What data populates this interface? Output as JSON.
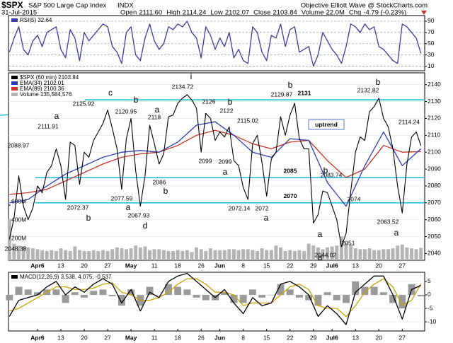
{
  "header": {
    "symbol": "$SPX",
    "name": "S&P 500 Large Cap Index",
    "exchange": "INDX",
    "credit": "Objective Elliott Wave @ StockCharts.com",
    "date": "31-Jul-2015",
    "quote": [
      {
        "label": "Open",
        "value": "2111.60"
      },
      {
        "label": "High",
        "value": "2114.24"
      },
      {
        "label": "Low",
        "value": "2102.07"
      },
      {
        "label": "Close",
        "value": "2103.84"
      },
      {
        "label": "Volume",
        "value": "22.0M"
      },
      {
        "label": "Chg",
        "value": "-4.79 (-0.23%)"
      }
    ]
  },
  "chart_data": [
    {
      "type": "line",
      "legend": [
        "RSI(5) 32.64"
      ],
      "xlim": [
        -0.2,
        88.8
      ],
      "ylim": [
        2,
        100
      ],
      "yticks": [
        10,
        30,
        50,
        70,
        90
      ],
      "grid": true,
      "series": [
        {
          "name": "RSI(5)",
          "color": "#3f3a9e",
          "values": [
            35,
            60,
            80,
            40,
            30,
            55,
            65,
            45,
            70,
            75,
            80,
            40,
            25,
            75,
            60,
            20,
            70,
            55,
            65,
            75,
            85,
            80,
            45,
            35,
            15,
            70,
            80,
            30,
            20,
            60,
            85,
            55,
            40,
            50,
            80,
            75,
            85,
            80,
            90,
            70,
            60,
            25,
            80,
            65,
            40,
            60,
            45,
            70,
            25,
            40,
            20,
            15,
            80,
            70,
            35,
            20,
            65,
            60,
            85,
            45,
            75,
            80,
            35,
            40,
            45,
            10,
            30,
            70,
            55,
            40,
            30,
            15,
            45,
            85,
            80,
            70,
            85,
            75,
            80,
            45,
            40,
            30,
            20,
            15,
            85,
            80,
            70,
            60,
            32.64
          ]
        }
      ]
    },
    {
      "type": "line",
      "legend": [
        "$SPX (60 min) 2103.84",
        "EMA(34) 2102.01",
        "EMA(89) 2100.36",
        "Volume 135,584,576"
      ],
      "xlim": [
        -0.2,
        88.8
      ],
      "ylim": [
        2036,
        2147
      ],
      "yticks": [
        2040,
        2050,
        2060,
        2070,
        2080,
        2090,
        2100,
        2110,
        2120,
        2130,
        2140
      ],
      "grid": true,
      "y2lim": [
        0,
        2040
      ],
      "y2ticks": [
        {
          "value": 200,
          "label": "200M"
        },
        {
          "value": 400,
          "label": "400M"
        },
        {
          "value": 600,
          "label": "600M"
        }
      ],
      "xticks": [
        {
          "value": 6,
          "label": "Apr6"
        },
        {
          "value": 11,
          "label": "13"
        },
        {
          "value": 16,
          "label": "20"
        },
        {
          "value": 21,
          "label": "27"
        },
        {
          "value": 26,
          "label": "May"
        },
        {
          "value": 31,
          "label": "11"
        },
        {
          "value": 36,
          "label": "18"
        },
        {
          "value": 41,
          "label": "26"
        },
        {
          "value": 45,
          "label": "Jun"
        },
        {
          "value": 50,
          "label": "8"
        },
        {
          "value": 55,
          "label": "15"
        },
        {
          "value": 60,
          "label": "22"
        },
        {
          "value": 65,
          "label": "29"
        },
        {
          "value": 69,
          "label": "Jul6"
        },
        {
          "value": 74,
          "label": "13"
        },
        {
          "value": 79,
          "label": "20"
        },
        {
          "value": 84,
          "label": "27"
        }
      ],
      "series": [
        {
          "name": "Volume",
          "type": "bar",
          "axis": "y2",
          "color": "#b4b4b4",
          "values": [
            450,
            180,
            160,
            150,
            140,
            130,
            120,
            110,
            100,
            110,
            100,
            130,
            110,
            100,
            150,
            110,
            100,
            100,
            110,
            100,
            110,
            100,
            120,
            140,
            130,
            120,
            130,
            160,
            140,
            150,
            110,
            120,
            120,
            110,
            100,
            100,
            110,
            100,
            110,
            90,
            140,
            120,
            100,
            130,
            110,
            110,
            110,
            120,
            120,
            110,
            120,
            120,
            110,
            100,
            130,
            110,
            110,
            160,
            140,
            100,
            110,
            100,
            110,
            100,
            180,
            160,
            140,
            120,
            140,
            150,
            160,
            260,
            190,
            170,
            130,
            120,
            120,
            130,
            110,
            110,
            120,
            120,
            130,
            160,
            170,
            140,
            130,
            120,
            135.584576
          ]
        },
        {
          "name": "EMA(89)",
          "color": "#c8322a",
          "x": [
            0,
            4,
            8,
            12,
            16,
            20,
            24,
            28,
            32,
            36,
            40,
            44,
            48,
            52,
            56,
            60,
            64,
            68,
            72,
            76,
            80,
            84,
            88
          ],
          "values": [
            2075,
            2076,
            2078,
            2083,
            2088,
            2093,
            2097,
            2099,
            2100,
            2104,
            2110,
            2113,
            2110,
            2105,
            2102,
            2106,
            2107,
            2095,
            2085,
            2090,
            2104,
            2100,
            2100.36
          ]
        },
        {
          "name": "EMA(34)",
          "color": "#2a3fb5",
          "x": [
            0,
            4,
            8,
            12,
            16,
            20,
            24,
            28,
            32,
            36,
            40,
            44,
            48,
            52,
            56,
            60,
            64,
            68,
            72,
            76,
            80,
            84,
            88
          ],
          "values": [
            2070,
            2072,
            2080,
            2087,
            2092,
            2097,
            2100,
            2101,
            2100,
            2106,
            2116,
            2118,
            2110,
            2100,
            2097,
            2108,
            2107,
            2082,
            2068,
            2092,
            2112,
            2092,
            2102.01
          ]
        },
        {
          "name": "$SPX (60 min)",
          "color": "#000000",
          "values": [
            2048.38,
            2061,
            2086,
            2068,
            2060,
            2067,
            2080,
            2076,
            2088,
            2092,
            2102,
            2092,
            2072,
            2106,
            2104,
            2081,
            2100,
            2097,
            2107,
            2112,
            2117,
            2125,
            2114,
            2102,
            2078,
            2108,
            2120,
            2089,
            2068,
            2086,
            2116,
            2105,
            2093,
            2099,
            2121,
            2122,
            2129,
            2132,
            2134,
            2131,
            2126,
            2100,
            2123,
            2120,
            2107,
            2112,
            2109,
            2115,
            2095,
            2092,
            2079,
            2072,
            2105,
            2110,
            2094,
            2074,
            2096,
            2100,
            2121,
            2110,
            2122,
            2129,
            2108,
            2102,
            2102,
            2058,
            2063,
            2077,
            2076,
            2068,
            2060,
            2044,
            2052,
            2077,
            2100,
            2109,
            2107,
            2124,
            2127,
            2132,
            2120,
            2115,
            2102,
            2080,
            2064,
            2093,
            2109,
            2112,
            2103.84
          ]
        }
      ],
      "levels": [
        2131,
        2085,
        2070
      ],
      "level_color": "#26c4dc",
      "status": "uptrend",
      "annotations": [
        {
          "text": "2048.38",
          "color": "#000"
        },
        {
          "text": "2088.97",
          "color": "#000"
        },
        {
          "text": "a",
          "color": "#2a9d3a"
        },
        {
          "text": "2111.91",
          "color": "#000"
        },
        {
          "text": "2072.37",
          "color": "#000"
        },
        {
          "text": "b",
          "color": "#1a8a70"
        },
        {
          "text": "2125.92",
          "color": "#000"
        },
        {
          "text": "c",
          "color": "#2a4fc0"
        },
        {
          "text": "b",
          "color": "#1a8a70"
        },
        {
          "text": "2120.95",
          "color": "#000"
        },
        {
          "text": "2077.59",
          "color": "#000"
        },
        {
          "text": "a",
          "color": "#1a8a70"
        },
        {
          "text": "2067.93",
          "color": "#000"
        },
        {
          "text": "d",
          "color": "#1a2a80"
        },
        {
          "text": "a",
          "color": "#1a8a70"
        },
        {
          "text": "2118",
          "color": "#000"
        },
        {
          "text": "2086",
          "color": "#000"
        },
        {
          "text": "b",
          "color": "#1a8a70"
        },
        {
          "text": "i",
          "color": "#888888"
        },
        {
          "text": "2134.72",
          "color": "#000"
        },
        {
          "text": "2126",
          "color": "#000"
        },
        {
          "text": "b",
          "color": "#e0701c"
        },
        {
          "text": "2122",
          "color": "#000"
        },
        {
          "text": "2099",
          "color": "#000"
        },
        {
          "text": "2099",
          "color": "#000"
        },
        {
          "text": "a",
          "color": "#e0701c"
        },
        {
          "text": "2115.02",
          "color": "#000"
        },
        {
          "text": "2072.14",
          "color": "#000"
        },
        {
          "text": "2072",
          "color": "#000"
        },
        {
          "text": "a",
          "color": "#1a8a70"
        },
        {
          "text": "b",
          "color": "#1a8a70"
        },
        {
          "text": "2129.87",
          "color": "#000"
        },
        {
          "text": "b",
          "color": "#e0701c"
        },
        {
          "text": "2083.74",
          "color": "#000"
        },
        {
          "text": "2074",
          "color": "#000"
        },
        {
          "text": "a",
          "color": "#e0701c"
        },
        {
          "text": "2051",
          "color": "#000"
        },
        {
          "text": "2044.02",
          "color": "#000"
        },
        {
          "text": "a",
          "color": "#1a2a80"
        },
        {
          "text": "b",
          "color": "#2a9d3a"
        },
        {
          "text": "2132.82",
          "color": "#000"
        },
        {
          "text": "2114.24",
          "color": "#000"
        },
        {
          "text": "2063.52",
          "color": "#000"
        },
        {
          "text": "a",
          "color": "#1a8a70"
        }
      ]
    },
    {
      "type": "line",
      "legend": [
        "MACD(12,26,9) 3.538, 4.075, -0.537"
      ],
      "xlim": [
        -0.2,
        88.8
      ],
      "ylim": [
        -13.4,
        8.4
      ],
      "yticks": [
        -10,
        -5,
        0,
        5
      ],
      "grid": true,
      "xticks": [
        {
          "value": 6,
          "label": "Apr6"
        },
        {
          "value": 11,
          "label": "13"
        },
        {
          "value": 16,
          "label": "20"
        },
        {
          "value": 21,
          "label": "27"
        },
        {
          "value": 26,
          "label": "May"
        },
        {
          "value": 31,
          "label": "11"
        },
        {
          "value": 36,
          "label": "18"
        },
        {
          "value": 41,
          "label": "26"
        },
        {
          "value": 45,
          "label": "Jun"
        },
        {
          "value": 50,
          "label": "8"
        },
        {
          "value": 55,
          "label": "15"
        },
        {
          "value": 60,
          "label": "22"
        },
        {
          "value": 65,
          "label": "29"
        },
        {
          "value": 69,
          "label": "Jul6"
        },
        {
          "value": 74,
          "label": "13"
        },
        {
          "value": 79,
          "label": "20"
        },
        {
          "value": 84,
          "label": "27"
        }
      ],
      "series": [
        {
          "name": "Histogram",
          "type": "bar",
          "color": "#9a9a9a",
          "x": [
            0,
            2,
            4,
            6,
            8,
            10,
            12,
            14,
            16,
            18,
            20,
            22,
            24,
            26,
            28,
            30,
            32,
            34,
            36,
            38,
            40,
            42,
            44,
            46,
            48,
            50,
            52,
            54,
            56,
            58,
            60,
            62,
            64,
            66,
            68,
            70,
            72,
            74,
            76,
            78,
            80,
            82,
            84,
            86,
            88
          ],
          "values": [
            -2,
            3,
            2,
            1,
            2,
            2,
            -3,
            1,
            -1,
            1.5,
            2,
            -0.5,
            -4,
            2,
            -4,
            3,
            0,
            4,
            3,
            2,
            -1,
            -2,
            -2,
            1,
            -3,
            -3,
            2,
            -1,
            0,
            4,
            2,
            -1,
            -2,
            -4,
            1,
            -2,
            -3,
            5,
            3,
            3,
            1,
            -3,
            -5,
            4,
            -0.537
          ]
        },
        {
          "name": "Signal",
          "color": "#c9a400",
          "x": [
            0,
            2,
            4,
            6,
            8,
            10,
            12,
            14,
            16,
            18,
            20,
            22,
            24,
            26,
            28,
            30,
            32,
            34,
            36,
            38,
            40,
            42,
            44,
            46,
            48,
            50,
            52,
            54,
            56,
            58,
            60,
            62,
            64,
            66,
            68,
            70,
            72,
            74,
            76,
            78,
            80,
            82,
            84,
            86,
            88
          ],
          "values": [
            -6,
            -5,
            -3,
            -1,
            1,
            3,
            3,
            2,
            2,
            2.5,
            4,
            4.5,
            1,
            0,
            -2,
            -2,
            -1,
            1,
            4,
            6,
            6,
            4,
            1,
            1,
            0,
            -4,
            -3,
            -3,
            -3,
            0,
            3,
            4,
            2,
            -4,
            -5,
            -5,
            -8,
            -4,
            1,
            4,
            6,
            3,
            -4,
            -2,
            4.075
          ]
        },
        {
          "name": "MACD",
          "color": "#000000",
          "x": [
            0,
            2,
            4,
            6,
            8,
            10,
            12,
            14,
            16,
            18,
            20,
            22,
            24,
            26,
            28,
            30,
            32,
            34,
            36,
            38,
            40,
            42,
            44,
            46,
            48,
            50,
            52,
            54,
            56,
            58,
            60,
            62,
            64,
            66,
            68,
            70,
            72,
            74,
            76,
            78,
            80,
            82,
            84,
            86,
            88
          ],
          "values": [
            -8,
            -2,
            -1,
            0,
            3,
            5,
            0,
            3,
            1,
            4,
            6,
            4,
            -3,
            2,
            -6,
            1,
            -1,
            5,
            7,
            8,
            5,
            2,
            -1,
            2,
            -3,
            -7,
            -1,
            -4,
            -3,
            4,
            5,
            3,
            0,
            -8,
            -4,
            -7,
            -11,
            1,
            4,
            7,
            7,
            0,
            -9,
            2,
            3.538
          ]
        }
      ]
    }
  ]
}
